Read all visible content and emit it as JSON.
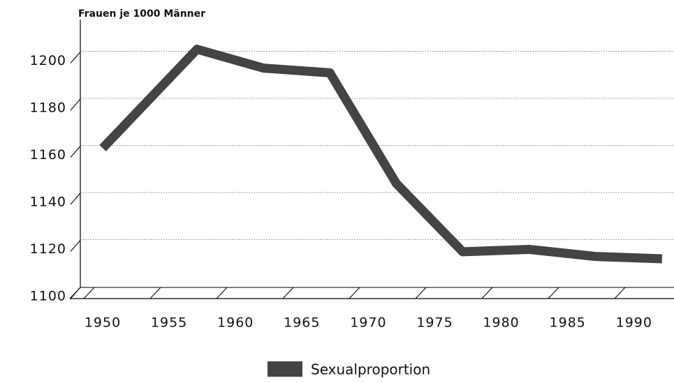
{
  "chart_data": {
    "type": "line",
    "y_label": "Frauen je 1000 Männer",
    "categories": [
      "1950",
      "1955",
      "1960",
      "1965",
      "1970",
      "1975",
      "1980",
      "1985",
      "1990"
    ],
    "series": [
      {
        "name": "Sexualproportion",
        "color": "#444444",
        "values": [
          1163,
          1205,
          1197,
          1195,
          1148,
          1119,
          1120,
          1117,
          1116
        ]
      }
    ],
    "ylim": [
      1100,
      1220
    ],
    "yticks": [
      1100,
      1120,
      1140,
      1160,
      1180,
      1200
    ],
    "grid": true,
    "legend": "bottom"
  }
}
